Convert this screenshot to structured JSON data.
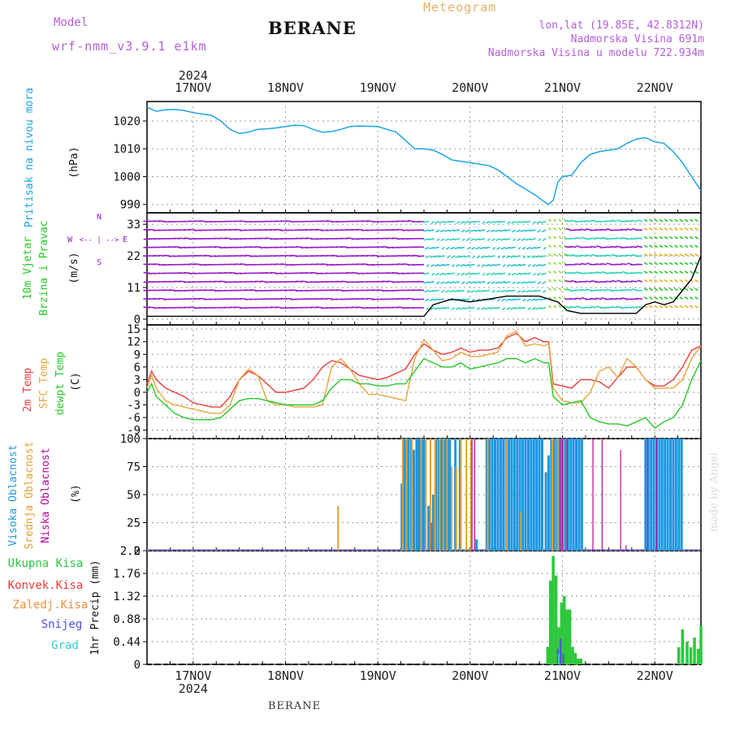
{
  "header": {
    "model_label": "Model",
    "model_name": "wrf-nmm_v3.9.1 e1km",
    "station": "BERANE",
    "title": "Meteogram",
    "info_lines": [
      "lon,lat (19.85E, 42.8312N)",
      "Nadmorska Visina 691m",
      "Nadmorska Visina u modelu 722.934m"
    ]
  },
  "footer": {
    "station": "BERANE",
    "watermark": "made by Angel"
  },
  "year_label": "2024",
  "days": [
    "17NOV",
    "18NOV",
    "19NOV",
    "20NOV",
    "21NOV",
    "22NOV"
  ],
  "colors": {
    "pressure": "#1ea3e6",
    "temp2m": "#e83c3c",
    "sfc": "#e6a53c",
    "dew": "#26c826",
    "high_cloud": "#1e96e0",
    "mid_cloud": "#e2a030",
    "low_cloud": "#b40a9a",
    "total_precip": "#2ec73c",
    "conv": "#e83c3c",
    "frozen": "#f2903c",
    "snow": "#5050e0",
    "graupel": "#2ecfcf",
    "wind_arrows": "#9a18cc",
    "grid": "#999999"
  },
  "panels": {
    "pressure": {
      "labels": [
        "Pritisak na nivou mora",
        "(hPa)"
      ]
    },
    "wind": {
      "labels": [
        "10m Vjetar",
        "Brzina i Pravac",
        "(m/s)"
      ],
      "compass": [
        "N",
        "S",
        "W",
        "E",
        "<-- | -->"
      ]
    },
    "temp": {
      "labels": [
        "2m Temp",
        "SFC Temp",
        "dewpt Temp",
        "(C)"
      ]
    },
    "cloud": {
      "labels": [
        "Visoka Oblacnost",
        "Srednja Oblacnost",
        "Niska Oblacnost",
        "(%)"
      ]
    },
    "precip": {
      "labels": [
        "1hr Precip (mm)"
      ],
      "legend": [
        "Ukupna Kisa",
        "Konvek.Kisa",
        "Zaledj.Kisa",
        "Snijeg",
        "Grad"
      ]
    }
  },
  "chart_data": [
    {
      "type": "line",
      "title": "",
      "ylabel": "Pritisak na nivou mora (hPa)",
      "ylim": [
        987,
        1027
      ],
      "yticks": [
        990,
        1000,
        1010,
        1020
      ],
      "xlim_days": [
        16.5,
        22.5
      ],
      "x": [
        16.5,
        16.6,
        16.7,
        16.8,
        16.9,
        17.0,
        17.1,
        17.2,
        17.3,
        17.4,
        17.5,
        17.6,
        17.7,
        17.8,
        17.9,
        18.0,
        18.1,
        18.2,
        18.3,
        18.4,
        18.5,
        18.6,
        18.7,
        18.8,
        18.9,
        19.0,
        19.1,
        19.2,
        19.3,
        19.4,
        19.5,
        19.6,
        19.7,
        19.8,
        19.9,
        20.0,
        20.1,
        20.2,
        20.3,
        20.4,
        20.5,
        20.6,
        20.7,
        20.8,
        20.85,
        20.9,
        20.95,
        21.0,
        21.1,
        21.2,
        21.3,
        21.4,
        21.5,
        21.6,
        21.7,
        21.8,
        21.9,
        22.0,
        22.1,
        22.2,
        22.3,
        22.4,
        22.5
      ],
      "series": [
        {
          "name": "Pritisak na nivou mora",
          "color": "#1ea3e6",
          "values": [
            1025,
            1023.5,
            1024,
            1024.2,
            1023.8,
            1023,
            1022.5,
            1022,
            1020,
            1017,
            1015.5,
            1016,
            1017,
            1017.2,
            1017.5,
            1018,
            1018.5,
            1018.3,
            1017,
            1016,
            1016.2,
            1017,
            1018,
            1018.2,
            1018.1,
            1018,
            1017,
            1016,
            1013,
            1010,
            1010,
            1009.5,
            1008,
            1006,
            1005.5,
            1005,
            1004.5,
            1004,
            1002.5,
            1000,
            997.5,
            995.5,
            993.5,
            991,
            990,
            991.5,
            998,
            1000,
            1000.5,
            1005,
            1008,
            1009,
            1009.5,
            1010,
            1012,
            1013.5,
            1014,
            1012.5,
            1012,
            1009,
            1005,
            1000,
            995
          ]
        }
      ]
    },
    {
      "type": "line",
      "title": "",
      "ylabel": "10m Vjetar Brzina i Pravac (m/s)",
      "ylim": [
        -2,
        37
      ],
      "yticks": [
        0,
        11,
        22,
        33
      ],
      "xlim_days": [
        16.5,
        22.5
      ],
      "x": [
        16.5,
        17.0,
        17.5,
        18.0,
        18.5,
        19.0,
        19.3,
        19.5,
        19.6,
        19.8,
        20.0,
        20.2,
        20.4,
        20.6,
        20.75,
        20.85,
        20.95,
        21.05,
        21.2,
        21.4,
        21.6,
        21.8,
        21.9,
        22.0,
        22.1,
        22.2,
        22.3,
        22.4,
        22.5
      ],
      "series": [
        {
          "name": "Brzina",
          "color": "#000000",
          "values": [
            1,
            1,
            1,
            1,
            1,
            1,
            1,
            1,
            5,
            7,
            6,
            7,
            8,
            8,
            8,
            7,
            6,
            3,
            2,
            2,
            2,
            2,
            5,
            6,
            5,
            6,
            10,
            14,
            22
          ]
        }
      ]
    },
    {
      "type": "line",
      "title": "",
      "ylabel": "(C)",
      "ylim": [
        -11,
        16
      ],
      "yticks": [
        -9,
        -6,
        -3,
        0,
        3,
        6,
        9,
        12,
        15
      ],
      "xlim_days": [
        16.5,
        22.5
      ],
      "x": [
        16.5,
        16.55,
        16.6,
        16.7,
        16.8,
        16.9,
        17.0,
        17.1,
        17.2,
        17.3,
        17.4,
        17.5,
        17.6,
        17.7,
        17.8,
        17.9,
        18.0,
        18.1,
        18.2,
        18.3,
        18.4,
        18.5,
        18.6,
        18.7,
        18.8,
        18.9,
        19.0,
        19.1,
        19.2,
        19.3,
        19.4,
        19.5,
        19.6,
        19.7,
        19.8,
        19.9,
        20.0,
        20.1,
        20.2,
        20.3,
        20.4,
        20.5,
        20.6,
        20.7,
        20.8,
        20.85,
        20.9,
        21.0,
        21.1,
        21.2,
        21.3,
        21.4,
        21.5,
        21.6,
        21.7,
        21.8,
        21.9,
        22.0,
        22.1,
        22.2,
        22.3,
        22.4,
        22.5
      ],
      "series": [
        {
          "name": "2m Temp",
          "color": "#e83c3c",
          "values": [
            2,
            5,
            3,
            1,
            0,
            -1,
            -2.5,
            -3,
            -3.5,
            -3.5,
            -1,
            3,
            5,
            4,
            2,
            0,
            0,
            0.5,
            1,
            3,
            6,
            7.5,
            7,
            5.5,
            4,
            3.5,
            3,
            3.5,
            4.5,
            5.5,
            9,
            11.5,
            10,
            9,
            9.5,
            10.5,
            9.5,
            10,
            10,
            10.5,
            13,
            14,
            12,
            13,
            12,
            12,
            2,
            1.5,
            1,
            3,
            3,
            2.5,
            1,
            3.5,
            6,
            6,
            3,
            1.5,
            1.5,
            3,
            6,
            10,
            11
          ]
        },
        {
          "name": "SFC Temp",
          "color": "#e6a53c",
          "values": [
            1,
            4,
            1,
            -2,
            -3,
            -3.5,
            -4,
            -4.5,
            -5,
            -5,
            -3,
            3,
            5.5,
            4,
            -2,
            -3,
            -3,
            -3.5,
            -3.5,
            -3.5,
            -3,
            6,
            8,
            5.5,
            2,
            -0.5,
            -0.5,
            -1,
            -1.5,
            -2,
            8,
            12.5,
            10,
            7.5,
            8,
            9.5,
            8.5,
            8.5,
            9,
            9.5,
            13.5,
            14.5,
            11,
            11.5,
            11,
            11.5,
            1,
            -2,
            -2.5,
            -2.5,
            0,
            5,
            6,
            3.5,
            8,
            6,
            3,
            1,
            1,
            1,
            3,
            8,
            11
          ]
        },
        {
          "name": "dewpt Temp",
          "color": "#26c826",
          "values": [
            0,
            2,
            -1,
            -3,
            -5,
            -6,
            -6.5,
            -6.5,
            -6.5,
            -6,
            -4,
            -2,
            -1.5,
            -1.5,
            -2,
            -2.5,
            -3,
            -3,
            -3,
            -3,
            -2,
            1,
            3,
            3,
            2,
            2,
            1.5,
            1.5,
            2,
            2,
            5,
            8,
            7,
            6,
            6,
            7,
            5.5,
            6,
            6.5,
            7,
            8,
            8,
            7,
            8,
            7,
            7,
            -1,
            -3,
            -2.5,
            -2,
            -6,
            -7,
            -7.5,
            -7.5,
            -8,
            -7,
            -6,
            -8.5,
            -7,
            -6,
            -3,
            3,
            7.5
          ]
        }
      ]
    },
    {
      "type": "bar",
      "title": "",
      "ylabel": "(%)",
      "ylim": [
        0,
        100
      ],
      "yticks": [
        0,
        25,
        50,
        75,
        100
      ],
      "xlim_days": [
        16.5,
        22.5
      ],
      "series": [
        {
          "name": "Visoka Oblacnost",
          "color": "#1e96e0",
          "x": [
            19.26,
            19.28,
            19.3,
            19.33,
            19.36,
            19.39,
            19.42,
            19.44,
            19.46,
            19.48,
            19.5,
            19.55,
            19.6,
            19.63,
            19.66,
            19.69,
            19.72,
            19.74,
            19.76,
            19.78,
            19.84,
            19.89,
            20.07,
            20.18,
            20.21,
            20.24,
            20.27,
            20.3,
            20.33,
            20.36,
            20.39,
            20.42,
            20.45,
            20.48,
            20.51,
            20.54,
            20.57,
            20.6,
            20.63,
            20.66,
            20.69,
            20.72,
            20.75,
            20.78,
            20.82,
            20.85,
            20.88,
            20.91,
            20.94,
            20.97,
            21.0,
            21.03,
            21.06,
            21.09,
            21.12,
            21.15,
            21.18,
            21.21,
            21.24,
            21.27,
            21.3,
            21.33,
            21.36,
            21.39,
            21.42,
            21.45,
            21.48,
            21.51,
            21.54,
            21.57,
            21.6,
            21.63,
            21.66,
            21.69,
            21.72,
            21.75,
            21.78,
            21.81,
            21.84,
            21.87,
            21.9,
            21.93,
            21.96,
            21.99,
            22.02,
            22.05,
            22.08,
            22.11,
            22.14,
            22.17,
            22.2,
            22.23,
            22.26,
            22.29
          ],
          "values": [
            60,
            100,
            100,
            100,
            100,
            90,
            100,
            100,
            100,
            100,
            100,
            40,
            50,
            100,
            100,
            100,
            100,
            100,
            100,
            100,
            100,
            100,
            10,
            100,
            100,
            100,
            100,
            100,
            100,
            100,
            100,
            100,
            100,
            100,
            100,
            100,
            100,
            100,
            100,
            100,
            100,
            100,
            100,
            100,
            70,
            85,
            100,
            100,
            100,
            100,
            100,
            100,
            100,
            100,
            100,
            100,
            100,
            100,
            0,
            0,
            0,
            0,
            0,
            0,
            0,
            0,
            0,
            0,
            0,
            0,
            0,
            0,
            0,
            0,
            0,
            0,
            0,
            0,
            0,
            0,
            100,
            100,
            100,
            100,
            100,
            100,
            100,
            100,
            100,
            100,
            100,
            100,
            100,
            100
          ]
        },
        {
          "name": "Srednja Oblacnost",
          "color": "#e2a030",
          "x": [
            18.57,
            19.27,
            19.31,
            19.37,
            19.47,
            19.52,
            19.57,
            19.62,
            19.67,
            19.71,
            19.75,
            19.8,
            19.85,
            19.9,
            19.96,
            20.01,
            20.19,
            20.39,
            20.55,
            20.89,
            20.95,
            21.0
          ],
          "values": [
            40,
            100,
            100,
            100,
            100,
            100,
            100,
            100,
            100,
            100,
            100,
            75,
            75,
            100,
            100,
            100,
            100,
            100,
            35,
            100,
            100,
            100
          ]
        },
        {
          "name": "Niska Oblacnost",
          "color": "#b40a9a",
          "x": [
            19.58,
            20.02,
            20.05,
            20.98,
            21.0,
            21.05,
            21.33,
            21.43,
            21.63,
            21.69,
            21.92,
            22.02
          ],
          "values": [
            25,
            100,
            100,
            100,
            100,
            100,
            100,
            100,
            90,
            5,
            100,
            100
          ]
        }
      ]
    },
    {
      "type": "bar",
      "title": "",
      "ylabel": "1hr Precip (mm)",
      "ylim": [
        0,
        2.2
      ],
      "yticks": [
        0,
        0.44,
        0.88,
        1.32,
        1.76,
        2.2
      ],
      "xlim_days": [
        16.5,
        22.5
      ],
      "series": [
        {
          "name": "Ukupna Kisa",
          "color": "#2ec73c",
          "x": [
            20.84,
            20.87,
            20.9,
            20.93,
            20.96,
            20.99,
            21.02,
            21.05,
            21.08,
            21.11,
            21.14,
            21.17,
            21.2,
            22.26,
            22.3,
            22.35,
            22.39,
            22.43,
            22.47,
            22.5
          ],
          "values": [
            0.34,
            1.62,
            2.1,
            1.72,
            0.72,
            1.2,
            1.32,
            1.06,
            1.06,
            0.34,
            0.22,
            0.11,
            0.11,
            0.33,
            0.68,
            0.44,
            0.33,
            0.52,
            0.3,
            0.75
          ]
        },
        {
          "name": "Snijeg",
          "color": "#5050e0",
          "x": [
            20.95,
            20.98,
            21.01
          ],
          "values": [
            0.3,
            0.5,
            0.2
          ]
        },
        {
          "name": "Grad",
          "color": "#2ecfcf",
          "x": [
            20.96
          ],
          "values": [
            0.2
          ]
        }
      ]
    }
  ]
}
